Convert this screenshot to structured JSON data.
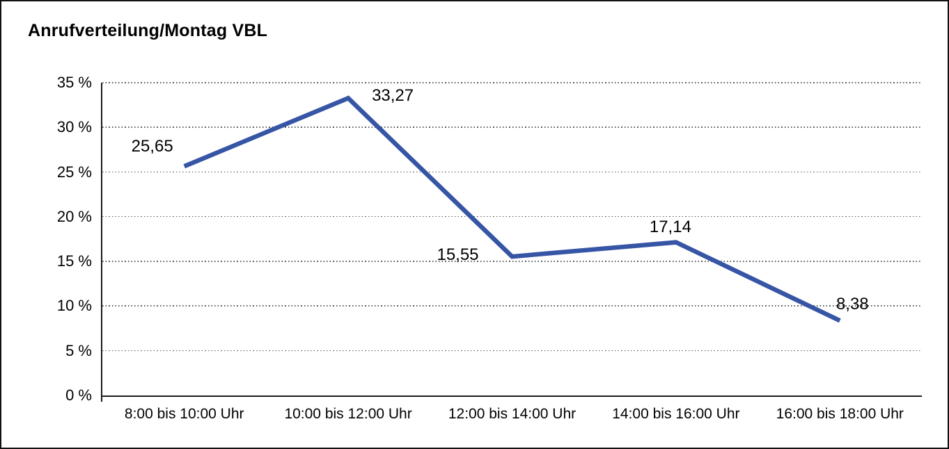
{
  "title": "Anrufverteilung/Montag VBL",
  "chart_data": {
    "type": "line",
    "title": "Anrufverteilung/Montag VBL",
    "categories": [
      "8:00 bis 10:00 Uhr",
      "10:00 bis 12:00 Uhr",
      "12:00 bis 14:00 Uhr",
      "14:00 bis 16:00 Uhr",
      "16:00 bis 18:00 Uhr"
    ],
    "values": [
      25.65,
      33.27,
      15.55,
      17.14,
      8.38
    ],
    "value_labels": [
      "25,65",
      "33,27",
      "15,55",
      "17,14",
      "8,38"
    ],
    "y_tick_labels": [
      "35 %",
      "30 %",
      "25 %",
      "20 %",
      "15 %",
      "10 %",
      "5 %",
      "0 %"
    ],
    "ylim": [
      0,
      35
    ],
    "y_step": 5,
    "xlabel": "",
    "ylabel": "",
    "grid": "horizontal-dotted",
    "legend": "none",
    "colors": {
      "line": "#3655A5",
      "axis": "#1a1a1a",
      "gridline": "#5a5a5a",
      "text": "#000000",
      "background": "#ffffff"
    }
  }
}
